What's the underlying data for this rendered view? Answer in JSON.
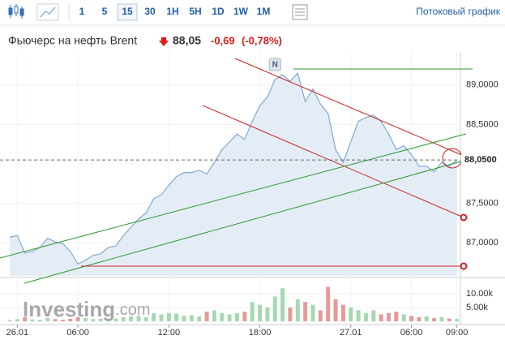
{
  "toolbar": {
    "intervals": [
      "1",
      "5",
      "15",
      "30",
      "1H",
      "5H",
      "1D",
      "1W",
      "1M"
    ],
    "selected": "15",
    "stream_link": "Потоковый график"
  },
  "header": {
    "title": "Фьючерс на нефть Brent",
    "price": "88,05",
    "change": "-0,69",
    "change_percent": "(-0,78%)"
  },
  "chart_data": {
    "type": "line",
    "color": "#86afd6",
    "area_color": "#e4edf6",
    "categories": [
      null,
      "26.01",
      null,
      null,
      null,
      null,
      null,
      null,
      null,
      "06:00",
      null,
      null,
      null,
      null,
      null,
      null,
      null,
      null,
      null,
      null,
      null,
      "12:00",
      null,
      null,
      null,
      null,
      null,
      null,
      null,
      null,
      null,
      null,
      null,
      "18:00",
      null,
      null,
      null,
      null,
      null,
      null,
      null,
      null,
      null,
      null,
      null,
      "27.01",
      null,
      null,
      null,
      null,
      null,
      null,
      null,
      "06:00",
      null,
      null,
      null,
      null,
      null,
      "09:00"
    ],
    "values": [
      87.07,
      87.09,
      86.87,
      86.89,
      86.94,
      87.06,
      87.01,
      86.99,
      86.89,
      86.73,
      86.78,
      86.84,
      86.86,
      86.94,
      86.96,
      87.09,
      87.2,
      87.3,
      87.38,
      87.56,
      87.61,
      87.73,
      87.84,
      87.89,
      87.89,
      87.92,
      87.87,
      88.02,
      88.18,
      88.28,
      88.38,
      88.31,
      88.54,
      88.74,
      88.85,
      89.07,
      89.13,
      89.05,
      89.15,
      88.79,
      88.95,
      88.76,
      88.64,
      88.18,
      88.02,
      88.28,
      88.54,
      88.59,
      88.62,
      88.54,
      88.38,
      88.18,
      88.23,
      88.12,
      87.97,
      87.97,
      87.9,
      88.02,
      87.97,
      88.05
    ],
    "ylim": [
      86.58,
      89.41
    ],
    "yticks": [
      {
        "value": 87,
        "label": "87,0000"
      },
      {
        "value": 87.5,
        "label": "87,5000"
      },
      {
        "value": 88.5,
        "label": "88,5000"
      },
      {
        "value": 89,
        "label": "89,0000"
      }
    ],
    "last_price": {
      "value": 88.05,
      "label": "88,0500"
    },
    "news_marker": "N",
    "volume": {
      "values": [
        500,
        800,
        1500,
        700,
        600,
        1200,
        800,
        600,
        900,
        1500,
        1200,
        800,
        900,
        700,
        1000,
        1500,
        1800,
        2000,
        1500,
        3000,
        2500,
        3000,
        2800,
        2000,
        2200,
        1800,
        3500,
        4000,
        3000,
        2500,
        3000,
        3500,
        7000,
        6000,
        5000,
        9000,
        12000,
        5000,
        8000,
        7000,
        6000,
        4000,
        12500,
        8000,
        6000,
        5000,
        4000,
        3000,
        4000,
        2500,
        3000,
        3500,
        2500,
        2000,
        1500,
        1800,
        1200,
        1500,
        1000,
        800
      ],
      "ylim": [
        0,
        15000
      ],
      "yticks": [
        {
          "value": 5000,
          "label": "5.00k"
        },
        {
          "value": 10000,
          "label": "10.00k"
        }
      ],
      "up_color": "#a6d8b0",
      "down_color": "#e59a9a"
    },
    "watermark": {
      "brand": "Investing",
      "suffix": ".com"
    }
  }
}
